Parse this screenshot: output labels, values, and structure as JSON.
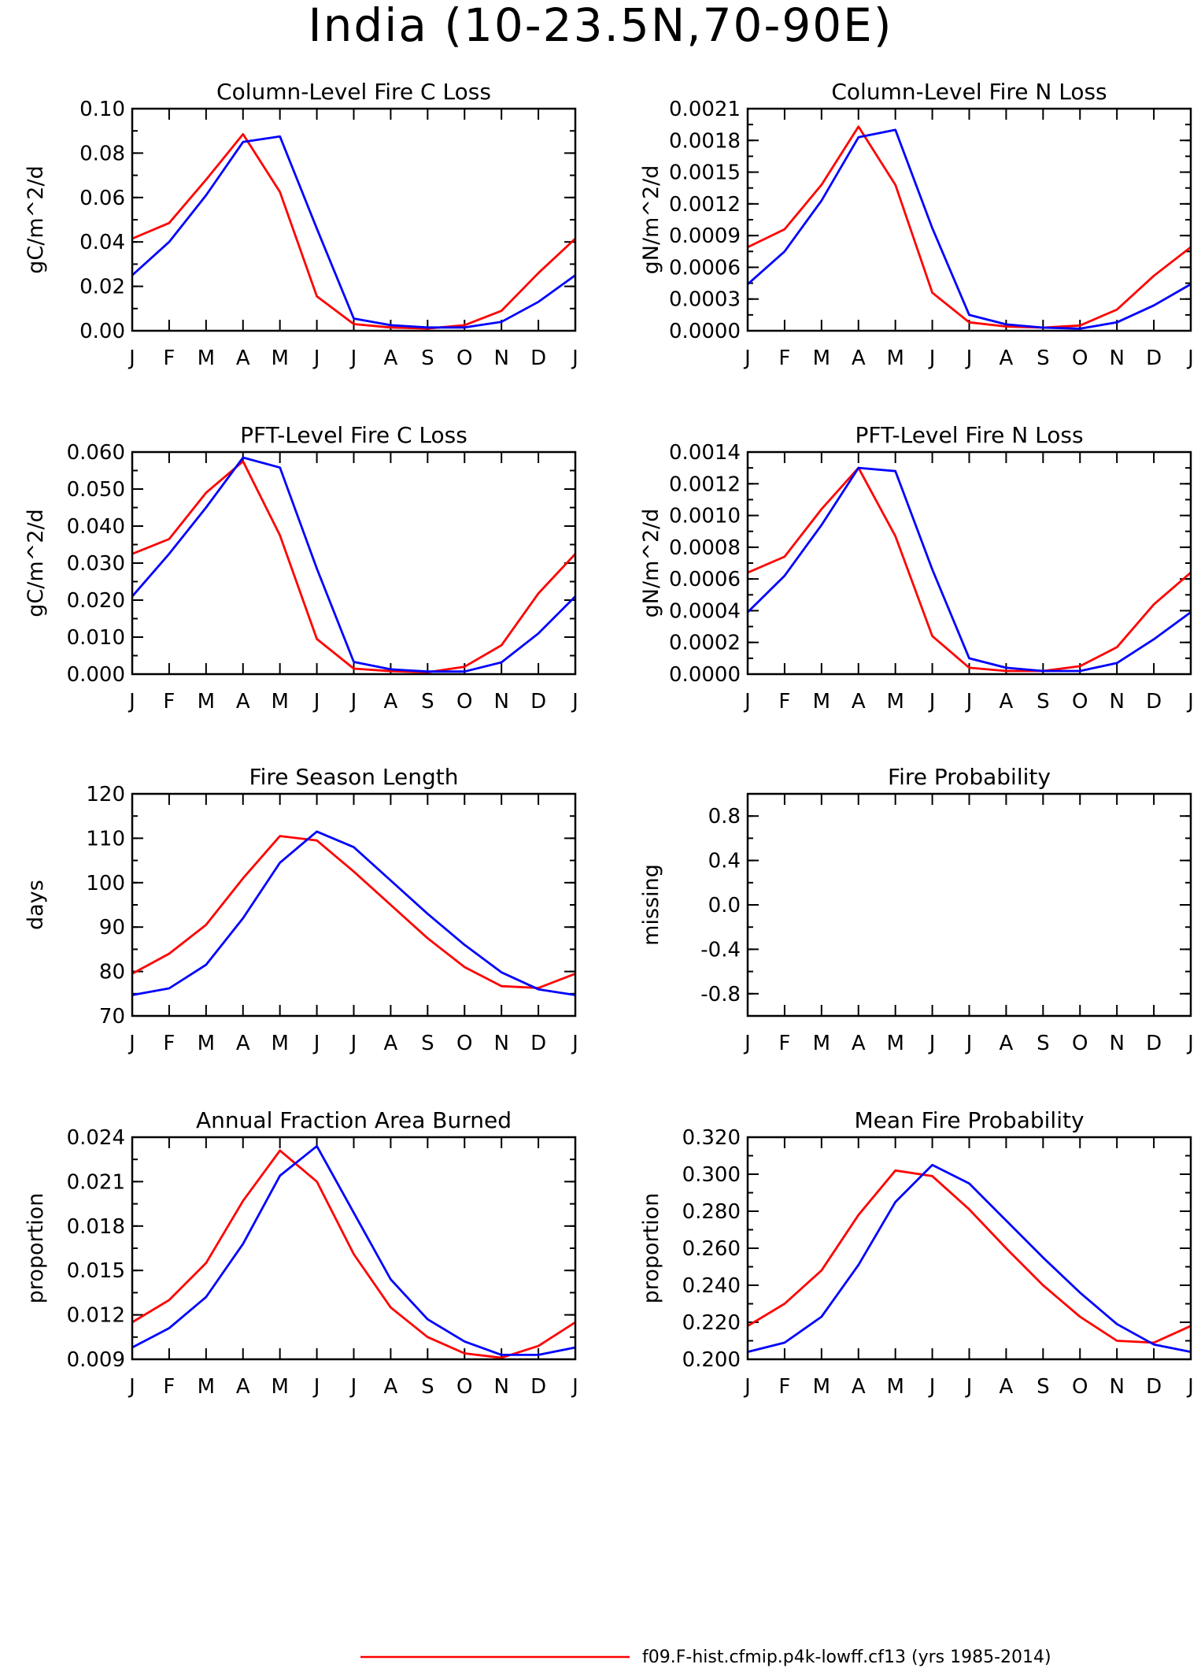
{
  "figure": {
    "title": "India (10-23.5N,70-90E)",
    "months": [
      "J",
      "F",
      "M",
      "A",
      "M",
      "J",
      "J",
      "A",
      "S",
      "O",
      "N",
      "D",
      "J"
    ]
  },
  "colors": {
    "case1": "#ff0000",
    "case2": "#0000ff",
    "axis": "#000000"
  },
  "legend": [
    {
      "label": "f09.F-hist.cfmip.p4k-lowff.cf13 (yrs 1985-2014)",
      "color": "#ff0000"
    }
  ],
  "chart_data": [
    {
      "type": "line",
      "title": "Column-Level Fire C Loss",
      "ylabel": "gC/m^2/d",
      "ylim": [
        0,
        0.1
      ],
      "yticks": [
        "0.00",
        "0.02",
        "0.04",
        "0.06",
        "0.08",
        "0.10"
      ],
      "series": [
        {
          "color": "#ff0000",
          "values": [
            0.0415,
            0.0485,
            0.068,
            0.0885,
            0.0625,
            0.0155,
            0.003,
            0.0015,
            0.001,
            0.0025,
            0.009,
            0.026,
            0.0415
          ]
        },
        {
          "color": "#0000ff",
          "values": [
            0.025,
            0.04,
            0.061,
            0.085,
            0.0875,
            0.046,
            0.0055,
            0.0025,
            0.0015,
            0.0015,
            0.004,
            0.013,
            0.025
          ]
        }
      ]
    },
    {
      "type": "line",
      "title": "Column-Level Fire N Loss",
      "ylabel": "gN/m^2/d",
      "ylim": [
        0,
        0.0021
      ],
      "yticks": [
        "0.0000",
        "0.0003",
        "0.0006",
        "0.0009",
        "0.0012",
        "0.0015",
        "0.0018",
        "0.0021"
      ],
      "series": [
        {
          "color": "#ff0000",
          "values": [
            0.00079,
            0.00096,
            0.00138,
            0.00193,
            0.00138,
            0.00036,
            8e-05,
            4e-05,
            3e-05,
            5e-05,
            0.0002,
            0.00052,
            0.00079
          ]
        },
        {
          "color": "#0000ff",
          "values": [
            0.00044,
            0.00075,
            0.00123,
            0.00183,
            0.0019,
            0.00097,
            0.00015,
            6e-05,
            3e-05,
            2e-05,
            8e-05,
            0.00024,
            0.00044
          ]
        }
      ]
    },
    {
      "type": "line",
      "title": "PFT-Level Fire C Loss",
      "ylabel": "gC/m^2/d",
      "ylim": [
        0,
        0.06
      ],
      "yticks": [
        "0.000",
        "0.010",
        "0.020",
        "0.030",
        "0.040",
        "0.050",
        "0.060"
      ],
      "series": [
        {
          "color": "#ff0000",
          "values": [
            0.0325,
            0.0365,
            0.049,
            0.0575,
            0.0375,
            0.0095,
            0.0015,
            0.0008,
            0.0005,
            0.002,
            0.0078,
            0.0218,
            0.0325
          ]
        },
        {
          "color": "#0000ff",
          "values": [
            0.021,
            0.0325,
            0.045,
            0.0585,
            0.0558,
            0.0285,
            0.0033,
            0.0013,
            0.0007,
            0.0007,
            0.0032,
            0.011,
            0.021
          ]
        }
      ]
    },
    {
      "type": "line",
      "title": "PFT-Level Fire N Loss",
      "ylabel": "gN/m^2/d",
      "ylim": [
        0,
        0.0014
      ],
      "yticks": [
        "0.0000",
        "0.0002",
        "0.0004",
        "0.0006",
        "0.0008",
        "0.0010",
        "0.0012",
        "0.0014"
      ],
      "series": [
        {
          "color": "#ff0000",
          "values": [
            0.00064,
            0.00074,
            0.00104,
            0.0013,
            0.00087,
            0.00024,
            4e-05,
            2e-05,
            2e-05,
            5e-05,
            0.00017,
            0.00044,
            0.00064
          ]
        },
        {
          "color": "#0000ff",
          "values": [
            0.00039,
            0.00062,
            0.00094,
            0.0013,
            0.00128,
            0.00066,
            0.0001,
            4e-05,
            2e-05,
            2e-05,
            7e-05,
            0.00022,
            0.00039
          ]
        }
      ]
    },
    {
      "type": "line",
      "title": "Fire Season Length",
      "ylabel": "days",
      "ylim": [
        70,
        120
      ],
      "yticks": [
        "70",
        "80",
        "90",
        "100",
        "110",
        "120"
      ],
      "series": [
        {
          "color": "#ff0000",
          "values": [
            79.5,
            84,
            90.5,
            101,
            110.5,
            109.5,
            102.5,
            95,
            87.5,
            81,
            76.7,
            76.3,
            79.5
          ]
        },
        {
          "color": "#0000ff",
          "values": [
            74.7,
            76.2,
            81.5,
            92,
            104.5,
            111.5,
            108,
            100.5,
            93,
            86,
            79.8,
            76,
            74.7
          ]
        }
      ]
    },
    {
      "type": "line",
      "title": "Fire Probability",
      "ylabel": "missing",
      "ylim": [
        -1,
        1
      ],
      "yticks": [
        "-0.8",
        "-0.4",
        "0.0",
        "0.4",
        "0.8"
      ],
      "ytick_values": [
        -0.8,
        -0.4,
        0,
        0.4,
        0.8
      ],
      "series": []
    },
    {
      "type": "line",
      "title": "Annual Fraction Area Burned",
      "ylabel": "proportion",
      "ylim": [
        0.009,
        0.024
      ],
      "yticks": [
        "0.009",
        "0.012",
        "0.015",
        "0.018",
        "0.021",
        "0.024"
      ],
      "series": [
        {
          "color": "#ff0000",
          "values": [
            0.0115,
            0.013,
            0.0155,
            0.0197,
            0.0231,
            0.021,
            0.0161,
            0.0125,
            0.0105,
            0.0094,
            0.0091,
            0.0099,
            0.0115
          ]
        },
        {
          "color": "#0000ff",
          "values": [
            0.0098,
            0.0111,
            0.0132,
            0.0168,
            0.0214,
            0.0234,
            0.0189,
            0.0144,
            0.0117,
            0.0102,
            0.0093,
            0.0093,
            0.0098
          ]
        }
      ]
    },
    {
      "type": "line",
      "title": "Mean Fire Probability",
      "ylabel": "proportion",
      "ylim": [
        0.2,
        0.32
      ],
      "yticks": [
        "0.200",
        "0.220",
        "0.240",
        "0.260",
        "0.280",
        "0.300",
        "0.320"
      ],
      "series": [
        {
          "color": "#ff0000",
          "values": [
            0.218,
            0.23,
            0.248,
            0.278,
            0.302,
            0.299,
            0.281,
            0.26,
            0.24,
            0.223,
            0.21,
            0.209,
            0.218
          ]
        },
        {
          "color": "#0000ff",
          "values": [
            0.204,
            0.209,
            0.223,
            0.251,
            0.285,
            0.305,
            0.295,
            0.275,
            0.255,
            0.236,
            0.219,
            0.208,
            0.204
          ]
        }
      ]
    }
  ]
}
